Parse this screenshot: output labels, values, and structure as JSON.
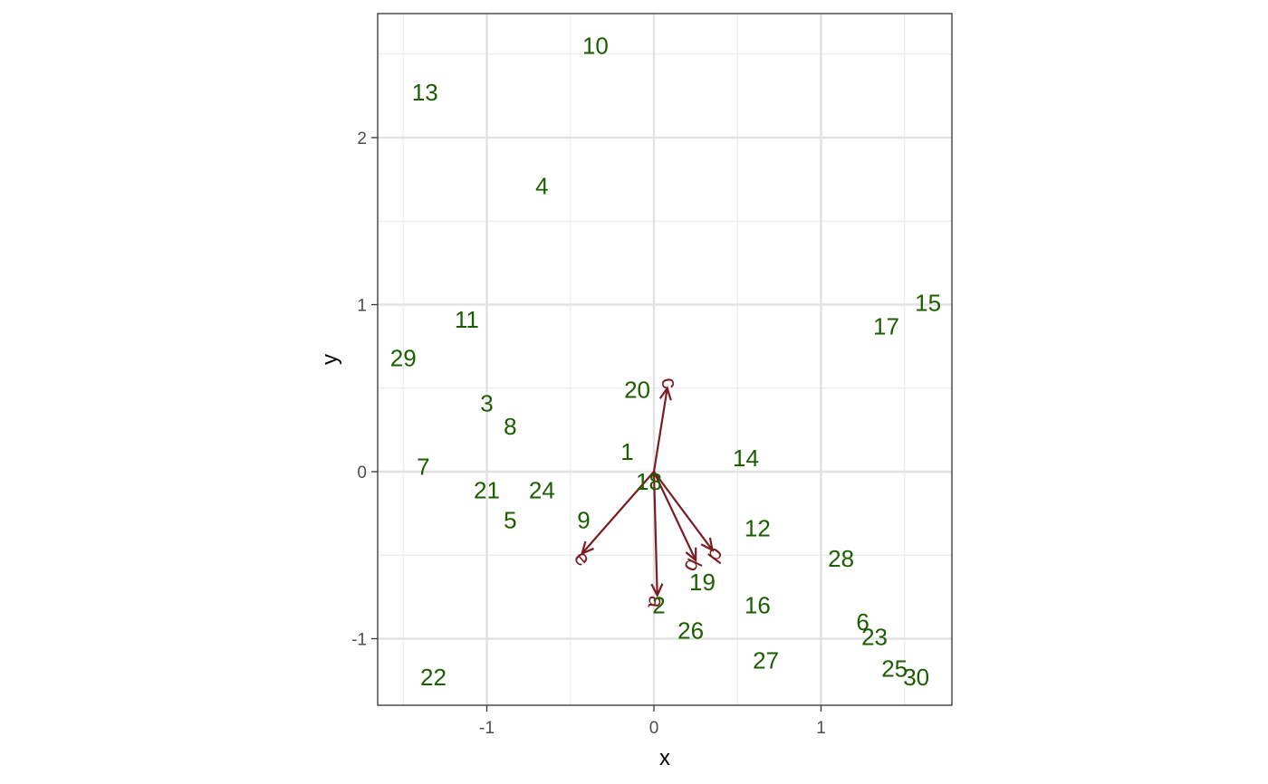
{
  "chart_data": {
    "type": "scatter",
    "subtype": "biplot",
    "title": "",
    "xlabel": "x",
    "ylabel": "y",
    "xlim": [
      -1.65,
      1.8
    ],
    "ylim": [
      -1.4,
      2.75
    ],
    "x_ticks": [
      -1,
      0,
      1
    ],
    "y_ticks": [
      -1,
      0,
      1,
      2
    ],
    "x_tick_labels": [
      "-1",
      "0",
      "1"
    ],
    "y_tick_labels": [
      "-1",
      "0",
      "1",
      "2"
    ],
    "grid": true,
    "legend": "none",
    "point_color": "#1b5e00",
    "arrow_color": "#7a1c22",
    "points": [
      {
        "label": "1",
        "x": -0.16,
        "y": 0.12
      },
      {
        "label": "2",
        "x": 0.03,
        "y": -0.8
      },
      {
        "label": "3",
        "x": -1.0,
        "y": 0.41
      },
      {
        "label": "4",
        "x": -0.67,
        "y": 1.71
      },
      {
        "label": "5",
        "x": -0.86,
        "y": -0.29
      },
      {
        "label": "6",
        "x": 1.25,
        "y": -0.9
      },
      {
        "label": "7",
        "x": -1.38,
        "y": 0.03
      },
      {
        "label": "8",
        "x": -0.86,
        "y": 0.27
      },
      {
        "label": "9",
        "x": -0.42,
        "y": -0.29
      },
      {
        "label": "10",
        "x": -0.35,
        "y": 2.55
      },
      {
        "label": "11",
        "x": -1.12,
        "y": 0.91
      },
      {
        "label": "12",
        "x": 0.62,
        "y": -0.34
      },
      {
        "label": "13",
        "x": -1.37,
        "y": 2.27
      },
      {
        "label": "14",
        "x": 0.55,
        "y": 0.08
      },
      {
        "label": "15",
        "x": 1.64,
        "y": 1.01
      },
      {
        "label": "16",
        "x": 0.62,
        "y": -0.8
      },
      {
        "label": "17",
        "x": 1.39,
        "y": 0.87
      },
      {
        "label": "18",
        "x": -0.03,
        "y": -0.06
      },
      {
        "label": "19",
        "x": 0.29,
        "y": -0.66
      },
      {
        "label": "20",
        "x": -0.1,
        "y": 0.49
      },
      {
        "label": "21",
        "x": -1.0,
        "y": -0.11
      },
      {
        "label": "22",
        "x": -1.32,
        "y": -1.23
      },
      {
        "label": "23",
        "x": 1.32,
        "y": -0.99
      },
      {
        "label": "24",
        "x": -0.67,
        "y": -0.11
      },
      {
        "label": "25",
        "x": 1.44,
        "y": -1.18
      },
      {
        "label": "26",
        "x": 0.22,
        "y": -0.95
      },
      {
        "label": "27",
        "x": 0.67,
        "y": -1.13
      },
      {
        "label": "28",
        "x": 1.12,
        "y": -0.52
      },
      {
        "label": "29",
        "x": -1.5,
        "y": 0.68
      },
      {
        "label": "30",
        "x": 1.57,
        "y": -1.23
      }
    ],
    "arrows": [
      {
        "label": "a",
        "x": 0.02,
        "y": -0.74,
        "label_x": 0.01,
        "label_y": -0.78,
        "label_rotation": 98
      },
      {
        "label": "b",
        "x": 0.25,
        "y": -0.53,
        "label_x": 0.23,
        "label_y": -0.56,
        "label_rotation": 115
      },
      {
        "label": "c",
        "x": 0.08,
        "y": 0.5,
        "label_x": 0.09,
        "label_y": 0.53,
        "label_rotation": 81
      },
      {
        "label": "d",
        "x": 0.35,
        "y": -0.47,
        "label_x": 0.37,
        "label_y": -0.5,
        "label_rotation": 127
      },
      {
        "label": "e",
        "x": -0.43,
        "y": -0.49,
        "label_x": -0.43,
        "label_y": -0.52,
        "label_rotation": 49
      }
    ]
  }
}
